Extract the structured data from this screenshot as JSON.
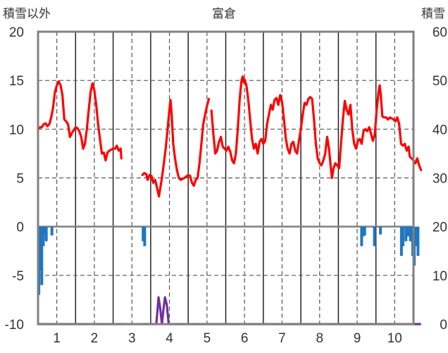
{
  "chart_data": {
    "type": "line",
    "title": "富倉",
    "ylabel_left": "積雪以外",
    "ylabel_right": "積雪",
    "ylim_left": [
      -10,
      20
    ],
    "ylim_right": [
      0,
      60
    ],
    "yticks_left": [
      "20",
      "15",
      "10",
      "5",
      "0",
      "-5",
      "-10"
    ],
    "yticks_right": [
      "60",
      "50",
      "40",
      "30",
      "20",
      "10",
      "0"
    ],
    "xlim": [
      0.5,
      10.5
    ],
    "xticks": [
      "1",
      "2",
      "3",
      "4",
      "5",
      "6",
      "7",
      "8",
      "9",
      "10"
    ],
    "grid": true,
    "colors": {
      "temperature": "#ff0000",
      "precipitation": "#1f77c0",
      "snow_depth": "#7030a0",
      "missing": "#a0a0a0",
      "frame": "#808080"
    },
    "series": [
      {
        "kind": "temperature_line",
        "axis": "left",
        "segments": [
          [
            [
              0.5,
              10.0
            ],
            [
              0.55,
              10.2
            ],
            [
              0.6,
              10.2
            ],
            [
              0.65,
              10.5
            ],
            [
              0.7,
              10.6
            ],
            [
              0.75,
              10.3
            ],
            [
              0.8,
              10.5
            ],
            [
              0.85,
              11.2
            ],
            [
              0.9,
              12.2
            ],
            [
              0.95,
              13.8
            ],
            [
              1.0,
              14.5
            ],
            [
              1.05,
              14.9
            ],
            [
              1.1,
              14.5
            ],
            [
              1.15,
              13.5
            ],
            [
              1.2,
              11.0
            ],
            [
              1.25,
              10.8
            ],
            [
              1.3,
              10.5
            ],
            [
              1.35,
              9.2
            ],
            [
              1.4,
              9.6
            ],
            [
              1.5,
              10.2
            ],
            [
              1.55,
              10.1
            ],
            [
              1.6,
              9.8
            ],
            [
              1.65,
              9.2
            ],
            [
              1.7,
              8.0
            ],
            [
              1.75,
              8.5
            ],
            [
              1.8,
              10.0
            ],
            [
              1.85,
              12.0
            ],
            [
              1.9,
              13.8
            ],
            [
              1.95,
              14.7
            ],
            [
              2.0,
              14.0
            ],
            [
              2.05,
              12.5
            ],
            [
              2.1,
              10.5
            ],
            [
              2.15,
              9.0
            ],
            [
              2.2,
              7.5
            ],
            [
              2.25,
              7.6
            ],
            [
              2.3,
              6.8
            ],
            [
              2.35,
              7.6
            ],
            [
              2.4,
              7.8
            ],
            [
              2.5,
              8.0
            ],
            [
              2.55,
              8.0
            ],
            [
              2.6,
              8.3
            ],
            [
              2.65,
              7.8
            ],
            [
              2.7,
              8.0
            ],
            [
              2.72,
              7.0
            ]
          ],
          [
            [
              3.28,
              5.3
            ],
            [
              3.33,
              5.5
            ],
            [
              3.38,
              5.4
            ],
            [
              3.42,
              4.8
            ],
            [
              3.47,
              5.3
            ],
            [
              3.52,
              5.2
            ],
            [
              3.57,
              4.5
            ],
            [
              3.62,
              4.8
            ],
            [
              3.68,
              3.8
            ],
            [
              3.72,
              3.1
            ],
            [
              3.75,
              3.8
            ],
            [
              3.8,
              5.0
            ],
            [
              3.85,
              6.5
            ],
            [
              3.9,
              8.0
            ],
            [
              3.95,
              10.0
            ],
            [
              4.0,
              12.0
            ],
            [
              4.03,
              13.0
            ],
            [
              4.06,
              11.5
            ],
            [
              4.1,
              8.5
            ],
            [
              4.15,
              7.0
            ],
            [
              4.2,
              5.8
            ],
            [
              4.25,
              5.0
            ],
            [
              4.3,
              4.8
            ],
            [
              4.4,
              5.0
            ],
            [
              4.5,
              5.3
            ],
            [
              4.55,
              5.2
            ],
            [
              4.6,
              4.5
            ],
            [
              4.65,
              4.2
            ],
            [
              4.7,
              4.8
            ],
            [
              4.75,
              5.0
            ],
            [
              4.8,
              6.5
            ],
            [
              4.85,
              8.5
            ],
            [
              4.9,
              10.5
            ],
            [
              4.95,
              11.5
            ],
            [
              5.0,
              12.4
            ],
            [
              5.05,
              13.1
            ]
          ],
          [
            [
              5.12,
              11.9
            ],
            [
              5.17,
              9.5
            ],
            [
              5.22,
              7.5
            ],
            [
              5.27,
              7.8
            ],
            [
              5.32,
              8.7
            ],
            [
              5.37,
              9.2
            ],
            [
              5.42,
              8.2
            ],
            [
              5.47,
              8.0
            ],
            [
              5.52,
              7.8
            ],
            [
              5.57,
              8.2
            ],
            [
              5.62,
              7.7
            ],
            [
              5.67,
              6.8
            ],
            [
              5.72,
              6.5
            ],
            [
              5.77,
              7.5
            ],
            [
              5.82,
              10.0
            ],
            [
              5.87,
              13.0
            ],
            [
              5.92,
              15.0
            ],
            [
              5.95,
              15.4
            ],
            [
              5.98,
              14.8
            ],
            [
              6.0,
              15.1
            ],
            [
              6.05,
              14.5
            ],
            [
              6.1,
              13.0
            ],
            [
              6.15,
              11.0
            ],
            [
              6.2,
              9.0
            ],
            [
              6.25,
              8.0
            ],
            [
              6.3,
              8.5
            ],
            [
              6.35,
              7.5
            ],
            [
              6.4,
              8.7
            ],
            [
              6.45,
              9.0
            ],
            [
              6.5,
              8.5
            ],
            [
              6.55,
              8.8
            ],
            [
              6.6,
              10.5
            ],
            [
              6.65,
              11.5
            ],
            [
              6.7,
              12.5
            ],
            [
              6.75,
              12.0
            ],
            [
              6.8,
              13.0
            ],
            [
              6.85,
              13.2
            ],
            [
              6.9,
              12.5
            ],
            [
              6.95,
              13.5
            ],
            [
              7.0,
              12.8
            ],
            [
              7.05,
              11.0
            ],
            [
              7.1,
              9.0
            ],
            [
              7.15,
              8.0
            ],
            [
              7.2,
              7.5
            ],
            [
              7.25,
              8.5
            ],
            [
              7.3,
              8.7
            ],
            [
              7.35,
              7.8
            ],
            [
              7.4,
              7.5
            ],
            [
              7.45,
              8.8
            ],
            [
              7.5,
              10.0
            ],
            [
              7.55,
              11.5
            ],
            [
              7.6,
              12.7
            ],
            [
              7.65,
              12.5
            ],
            [
              7.7,
              13.1
            ],
            [
              7.75,
              13.3
            ],
            [
              7.8,
              13.1
            ],
            [
              7.85,
              11.0
            ],
            [
              7.9,
              8.5
            ],
            [
              7.95,
              7.0
            ],
            [
              8.0,
              6.5
            ],
            [
              8.05,
              6.3
            ],
            [
              8.1,
              6.8
            ],
            [
              8.15,
              7.5
            ],
            [
              8.2,
              9.2
            ],
            [
              8.25,
              8.0
            ],
            [
              8.3,
              6.0
            ],
            [
              8.33,
              5.0
            ],
            [
              8.37,
              6.0
            ],
            [
              8.42,
              6.5
            ],
            [
              8.47,
              6.3
            ],
            [
              8.52,
              6.0
            ],
            [
              8.57,
              8.5
            ],
            [
              8.62,
              11.0
            ],
            [
              8.67,
              12.9
            ],
            [
              8.72,
              12.0
            ],
            [
              8.77,
              11.5
            ],
            [
              8.82,
              12.5
            ],
            [
              8.87,
              10.0
            ],
            [
              8.92,
              8.5
            ],
            [
              8.97,
              8.0
            ],
            [
              9.02,
              8.8
            ],
            [
              9.07,
              9.0
            ],
            [
              9.12,
              8.5
            ],
            [
              9.17,
              9.8
            ],
            [
              9.22,
              10.0
            ],
            [
              9.27,
              9.8
            ],
            [
              9.32,
              10.2
            ],
            [
              9.37,
              9.5
            ],
            [
              9.42,
              8.8
            ],
            [
              9.47,
              9.5
            ],
            [
              9.52,
              12.0
            ],
            [
              9.57,
              13.8
            ],
            [
              9.6,
              14.5
            ],
            [
              9.63,
              13.5
            ],
            [
              9.67,
              11.3
            ],
            [
              9.72,
              11.2
            ],
            [
              9.77,
              11.2
            ],
            [
              9.82,
              11.0
            ],
            [
              9.87,
              11.2
            ],
            [
              9.92,
              11.1
            ],
            [
              9.97,
              11.0
            ],
            [
              10.02,
              10.8
            ],
            [
              10.07,
              11.2
            ],
            [
              10.12,
              10.5
            ],
            [
              10.17,
              8.5
            ],
            [
              10.22,
              8.3
            ],
            [
              10.27,
              8.5
            ],
            [
              10.32,
              7.8
            ],
            [
              10.37,
              8.2
            ],
            [
              10.4,
              7.2
            ],
            [
              10.45,
              7.0
            ],
            [
              10.5,
              6.8
            ],
            [
              10.55,
              6.5
            ],
            [
              10.6,
              7.0
            ],
            [
              10.65,
              6.3
            ],
            [
              10.7,
              5.8
            ]
          ]
        ]
      },
      {
        "kind": "precipitation_bars",
        "axis": "left",
        "bars": [
          [
            0.52,
            -7.0
          ],
          [
            0.56,
            -4.5
          ],
          [
            0.6,
            -6.0
          ],
          [
            0.64,
            -2.0
          ],
          [
            0.68,
            -0.8
          ],
          [
            0.72,
            -1.5
          ],
          [
            0.87,
            -0.9
          ],
          [
            3.3,
            -1.5
          ],
          [
            3.34,
            -2.0
          ],
          [
            9.12,
            -2.0
          ],
          [
            9.16,
            -1.0
          ],
          [
            9.2,
            -0.9
          ],
          [
            9.46,
            -2.0
          ],
          [
            9.62,
            -0.8
          ],
          [
            10.18,
            -3.0
          ],
          [
            10.22,
            -2.0
          ],
          [
            10.3,
            -1.5
          ],
          [
            10.35,
            -1.0
          ],
          [
            10.42,
            -1.5
          ],
          [
            10.48,
            -3.0
          ],
          [
            10.52,
            -4.0
          ],
          [
            10.58,
            -2.0
          ],
          [
            10.62,
            -3.0
          ]
        ]
      },
      {
        "kind": "snow_depth_line",
        "axis": "right",
        "segments": [
          [
            [
              0.5,
              0
            ],
            [
              2.78,
              0
            ]
          ],
          [
            [
              3.3,
              0
            ],
            [
              3.65,
              0
            ],
            [
              3.71,
              5.5
            ],
            [
              3.75,
              3.5
            ],
            [
              3.8,
              0
            ],
            [
              3.84,
              3.0
            ],
            [
              3.88,
              5.5
            ],
            [
              3.93,
              4.0
            ],
            [
              3.98,
              0
            ],
            [
              10.7,
              0
            ]
          ]
        ]
      },
      {
        "kind": "missing_marker",
        "axis": "right",
        "segments": [
          [
            [
              2.78,
              0
            ],
            [
              3.3,
              0
            ]
          ]
        ]
      }
    ]
  }
}
